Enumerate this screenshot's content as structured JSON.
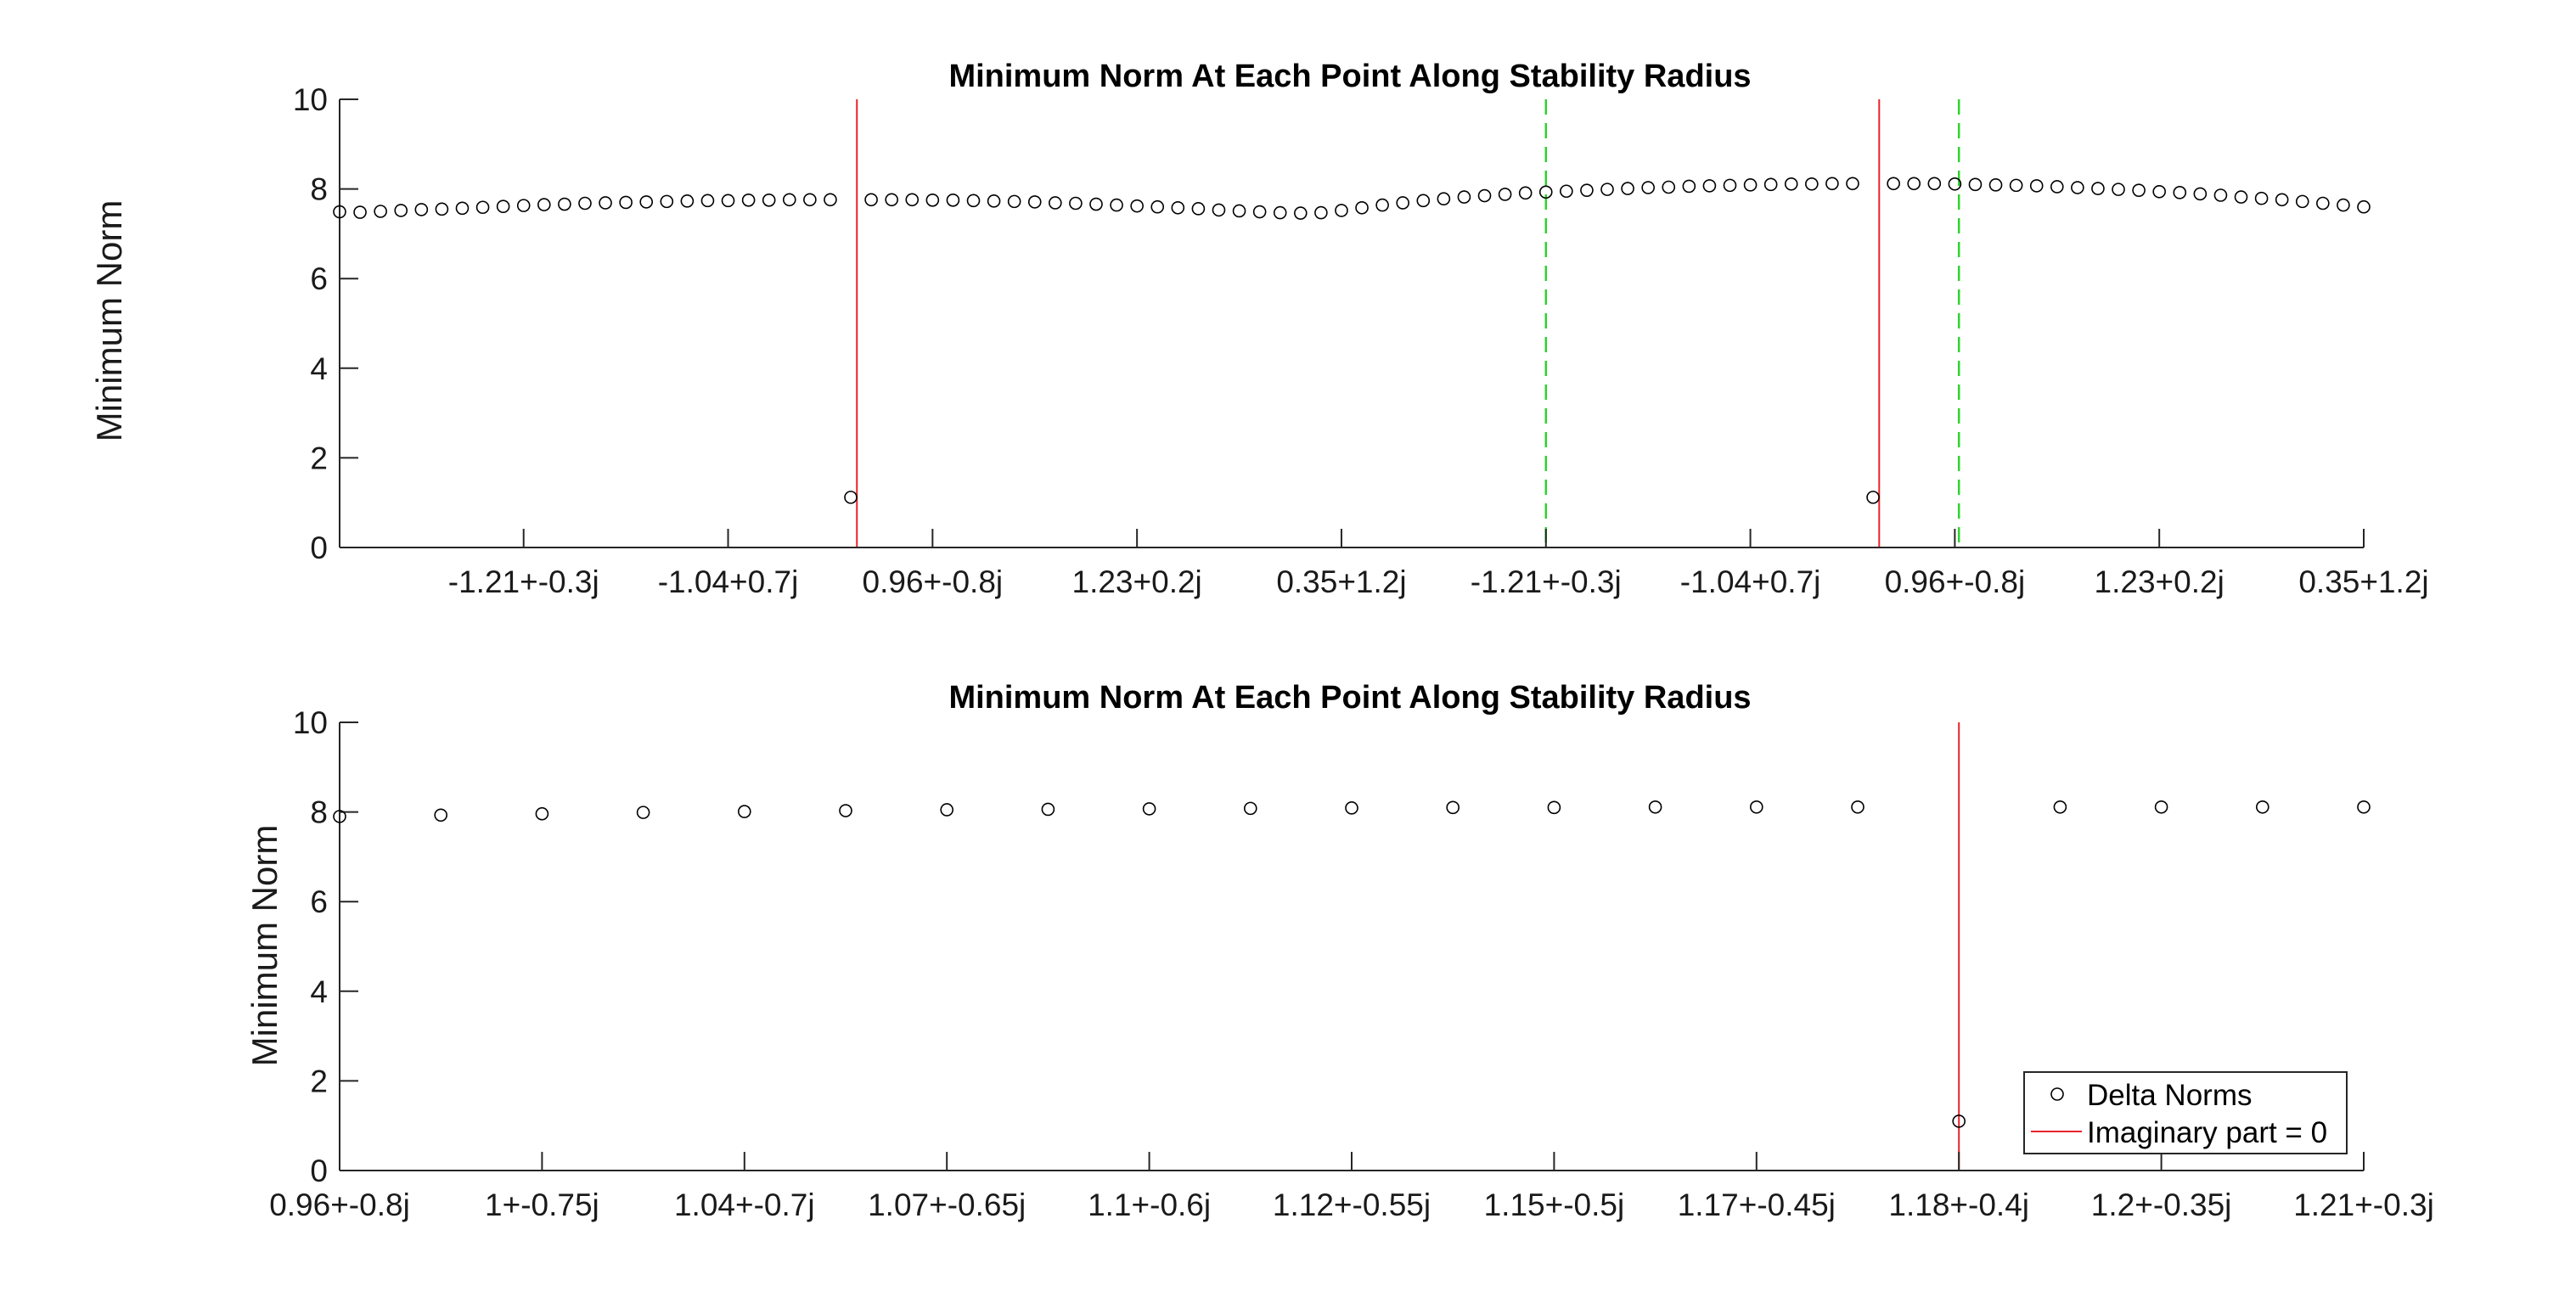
{
  "chart_data": [
    {
      "type": "scatter",
      "title": "Minimum Norm At Each Point Along Stability Radius",
      "ylabel": "Minimum Norm",
      "xlabel": "",
      "ylim": [
        0,
        10
      ],
      "yticks": [
        0,
        2,
        4,
        6,
        8,
        10
      ],
      "xlim": [
        1,
        100
      ],
      "xticks": [
        10,
        20,
        30,
        40,
        50,
        60,
        70,
        80,
        90,
        100
      ],
      "xticklabels": [
        "-1.21+-0.3j",
        "-1.04+0.7j",
        "0.96+-0.8j",
        "1.23+0.2j",
        "0.35+1.2j",
        "-1.21+-0.3j",
        "-1.04+0.7j",
        "0.96+-0.8j",
        "1.23+0.2j",
        "0.35+1.2j"
      ],
      "grid": false,
      "series": [
        {
          "marker": "circle",
          "color": "#000000",
          "x": [
            1,
            2,
            3,
            4,
            5,
            6,
            7,
            8,
            9,
            10,
            11,
            12,
            13,
            14,
            15,
            16,
            17,
            18,
            19,
            20,
            21,
            22,
            23,
            24,
            25,
            26,
            27,
            28,
            29,
            30,
            31,
            32,
            33,
            34,
            35,
            36,
            37,
            38,
            39,
            40,
            41,
            42,
            43,
            44,
            45,
            46,
            47,
            48,
            49,
            50,
            51,
            52,
            53,
            54,
            55,
            56,
            57,
            58,
            59,
            60,
            61,
            62,
            63,
            64,
            65,
            66,
            67,
            68,
            69,
            70,
            71,
            72,
            73,
            74,
            75,
            76,
            77,
            78,
            79,
            80,
            81,
            82,
            83,
            84,
            85,
            86,
            87,
            88,
            89,
            90,
            91,
            92,
            93,
            94,
            95,
            96,
            97,
            98,
            99,
            100
          ],
          "y": [
            7.49,
            7.48,
            7.5,
            7.52,
            7.54,
            7.55,
            7.57,
            7.59,
            7.61,
            7.63,
            7.65,
            7.66,
            7.68,
            7.69,
            7.7,
            7.71,
            7.72,
            7.73,
            7.74,
            7.74,
            7.75,
            7.75,
            7.76,
            7.76,
            7.76,
            1.12,
            7.76,
            7.76,
            7.76,
            7.75,
            7.75,
            7.74,
            7.73,
            7.72,
            7.71,
            7.69,
            7.68,
            7.66,
            7.64,
            7.62,
            7.6,
            7.58,
            7.56,
            7.53,
            7.51,
            7.49,
            7.47,
            7.46,
            7.47,
            7.52,
            7.58,
            7.64,
            7.69,
            7.74,
            7.78,
            7.82,
            7.85,
            7.88,
            7.91,
            7.93,
            7.95,
            7.97,
            7.99,
            8.01,
            8.03,
            8.04,
            8.06,
            8.07,
            8.08,
            8.09,
            8.1,
            8.11,
            8.11,
            8.12,
            8.12,
            1.12,
            8.12,
            8.12,
            8.12,
            8.11,
            8.1,
            8.09,
            8.08,
            8.07,
            8.05,
            8.03,
            8.01,
            7.99,
            7.97,
            7.94,
            7.92,
            7.89,
            7.86,
            7.82,
            7.79,
            7.76,
            7.72,
            7.68,
            7.64,
            7.6
          ]
        }
      ],
      "vlines_solid_red": [
        26.3,
        76.3
      ],
      "vlines_dashed_green": [
        60,
        80.2
      ]
    },
    {
      "type": "scatter",
      "title": "Minimum Norm At Each Point Along Stability Radius",
      "ylabel": "Minimum Norm",
      "xlabel": "",
      "ylim": [
        0,
        10
      ],
      "yticks": [
        0,
        2,
        4,
        6,
        8,
        10
      ],
      "xlim": [
        1,
        21
      ],
      "xticks": [
        1,
        3,
        5,
        7,
        9,
        11,
        13,
        15,
        17,
        19,
        21
      ],
      "xticklabels": [
        "0.96+-0.8j",
        "1+-0.75j",
        "1.04+-0.7j",
        "1.07+-0.65j",
        "1.1+-0.6j",
        "1.12+-0.55j",
        "1.15+-0.5j",
        "1.17+-0.45j",
        "1.18+-0.4j",
        "1.2+-0.35j",
        "1.21+-0.3j"
      ],
      "grid": false,
      "series": [
        {
          "name": "Delta Norms",
          "marker": "circle",
          "color": "#000000",
          "x": [
            1,
            2,
            3,
            4,
            5,
            6,
            7,
            8,
            9,
            10,
            11,
            12,
            13,
            14,
            15,
            16,
            17,
            18,
            19,
            20,
            21
          ],
          "y": [
            7.9,
            7.93,
            7.96,
            7.99,
            8.01,
            8.03,
            8.05,
            8.06,
            8.07,
            8.08,
            8.09,
            8.1,
            8.1,
            8.11,
            8.11,
            8.11,
            1.1,
            8.11,
            8.11,
            8.11,
            8.11
          ]
        },
        {
          "name": "Imaginary part = 0",
          "type": "vline",
          "color": "#e8232a",
          "x": [
            17
          ]
        }
      ],
      "legend": {
        "placement": "bottom-right",
        "entries": [
          "Delta Norms",
          "Imaginary part = 0"
        ]
      }
    }
  ],
  "colors": {
    "marker": "#000000",
    "red_line": "#e8232a",
    "green_dashed": "#2fd32f",
    "axis": "#262626"
  }
}
